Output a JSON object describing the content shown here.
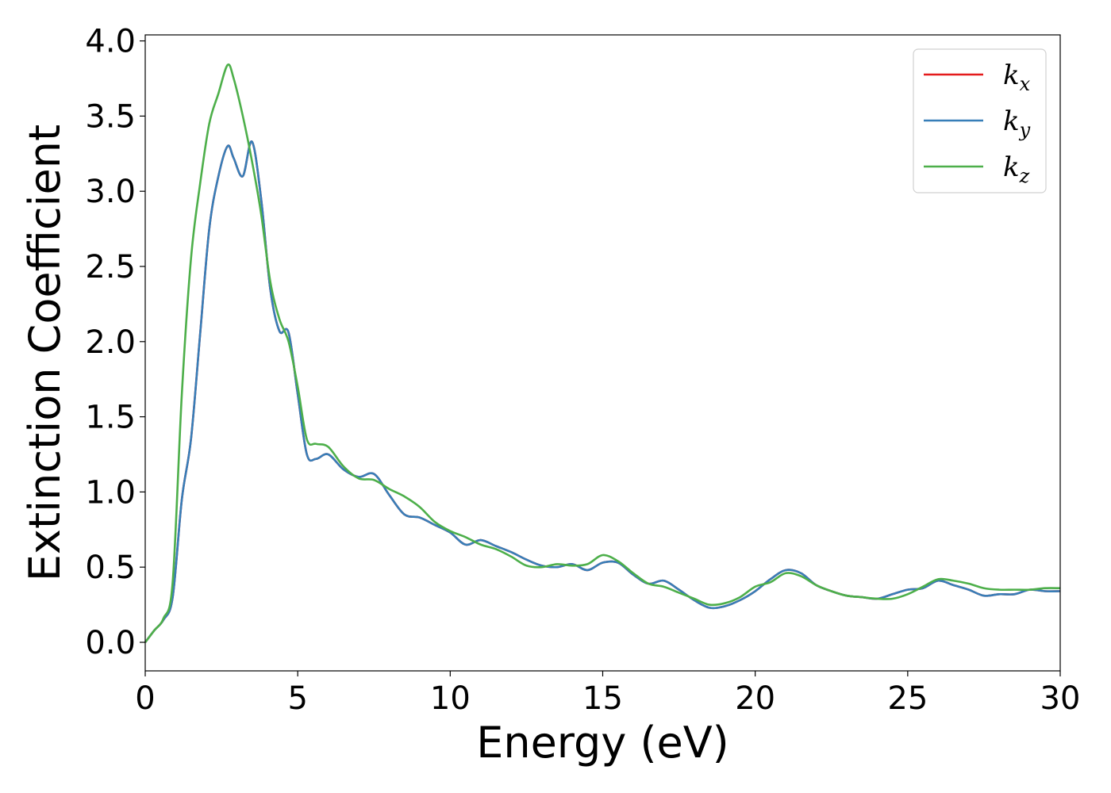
{
  "chart_data": {
    "type": "line",
    "xlabel": "Energy (eV)",
    "ylabel": "Extinction Coefficient",
    "xlim": [
      0,
      30
    ],
    "ylim": [
      -0.19,
      4.04
    ],
    "xticks": [
      0,
      5,
      10,
      15,
      20,
      25,
      30
    ],
    "xtick_labels": [
      "0",
      "5",
      "10",
      "15",
      "20",
      "25",
      "30"
    ],
    "yticks": [
      0.0,
      0.5,
      1.0,
      1.5,
      2.0,
      2.5,
      3.0,
      3.5,
      4.0
    ],
    "ytick_labels": [
      "0.0",
      "0.5",
      "1.0",
      "1.5",
      "2.0",
      "2.5",
      "3.0",
      "3.5",
      "4.0"
    ],
    "grid": false,
    "legend_position": "top-right",
    "x": [
      0,
      0.3,
      0.6,
      0.9,
      1.2,
      1.5,
      1.8,
      2.1,
      2.4,
      2.7,
      2.9,
      3.2,
      3.5,
      3.8,
      4.1,
      4.4,
      4.7,
      5.0,
      5.3,
      5.6,
      6.0,
      6.5,
      7.0,
      7.5,
      8.0,
      8.5,
      9.0,
      9.5,
      10.0,
      10.5,
      11.0,
      11.5,
      12.0,
      12.5,
      13.0,
      13.5,
      14.0,
      14.5,
      15.0,
      15.5,
      16.0,
      16.5,
      17.0,
      17.5,
      18.0,
      18.5,
      19.0,
      19.5,
      20.0,
      20.5,
      21.0,
      21.5,
      22.0,
      22.5,
      23.0,
      23.5,
      24.0,
      24.5,
      25.0,
      25.5,
      26.0,
      26.5,
      27.0,
      27.5,
      28.0,
      28.5,
      29.0,
      29.5,
      30.0
    ],
    "series": [
      {
        "name": "k",
        "subscript": "x",
        "color": "#e41a1c",
        "values": [
          0.0,
          0.08,
          0.15,
          0.3,
          0.95,
          1.35,
          2.05,
          2.75,
          3.1,
          3.3,
          3.22,
          3.1,
          3.33,
          2.95,
          2.35,
          2.07,
          2.06,
          1.65,
          1.25,
          1.22,
          1.25,
          1.15,
          1.1,
          1.12,
          0.98,
          0.85,
          0.83,
          0.78,
          0.73,
          0.65,
          0.68,
          0.64,
          0.6,
          0.55,
          0.51,
          0.5,
          0.52,
          0.48,
          0.53,
          0.53,
          0.45,
          0.39,
          0.41,
          0.35,
          0.28,
          0.23,
          0.24,
          0.28,
          0.34,
          0.42,
          0.48,
          0.46,
          0.38,
          0.34,
          0.31,
          0.3,
          0.29,
          0.32,
          0.35,
          0.36,
          0.41,
          0.38,
          0.35,
          0.31,
          0.32,
          0.32,
          0.35,
          0.34,
          0.34
        ]
      },
      {
        "name": "k",
        "subscript": "y",
        "color": "#377eb8",
        "values": [
          0.0,
          0.08,
          0.15,
          0.3,
          0.95,
          1.35,
          2.05,
          2.75,
          3.1,
          3.3,
          3.22,
          3.1,
          3.33,
          2.95,
          2.35,
          2.07,
          2.06,
          1.65,
          1.25,
          1.22,
          1.25,
          1.15,
          1.1,
          1.12,
          0.98,
          0.85,
          0.83,
          0.78,
          0.73,
          0.65,
          0.68,
          0.64,
          0.6,
          0.55,
          0.51,
          0.5,
          0.52,
          0.48,
          0.53,
          0.53,
          0.45,
          0.39,
          0.41,
          0.35,
          0.28,
          0.23,
          0.24,
          0.28,
          0.34,
          0.42,
          0.48,
          0.46,
          0.38,
          0.34,
          0.31,
          0.3,
          0.29,
          0.32,
          0.35,
          0.36,
          0.41,
          0.38,
          0.35,
          0.31,
          0.32,
          0.32,
          0.35,
          0.34,
          0.34
        ]
      },
      {
        "name": "k",
        "subscript": "z",
        "color": "#4daf4a",
        "values": [
          0.0,
          0.08,
          0.16,
          0.4,
          1.65,
          2.55,
          3.05,
          3.45,
          3.65,
          3.84,
          3.75,
          3.5,
          3.2,
          2.85,
          2.4,
          2.15,
          2.0,
          1.7,
          1.35,
          1.32,
          1.3,
          1.17,
          1.09,
          1.08,
          1.02,
          0.97,
          0.9,
          0.8,
          0.74,
          0.7,
          0.65,
          0.62,
          0.57,
          0.51,
          0.5,
          0.52,
          0.51,
          0.52,
          0.58,
          0.54,
          0.46,
          0.39,
          0.37,
          0.33,
          0.29,
          0.25,
          0.26,
          0.3,
          0.37,
          0.4,
          0.46,
          0.44,
          0.38,
          0.34,
          0.31,
          0.3,
          0.29,
          0.29,
          0.32,
          0.37,
          0.42,
          0.41,
          0.39,
          0.36,
          0.35,
          0.35,
          0.35,
          0.36,
          0.36
        ]
      }
    ]
  }
}
